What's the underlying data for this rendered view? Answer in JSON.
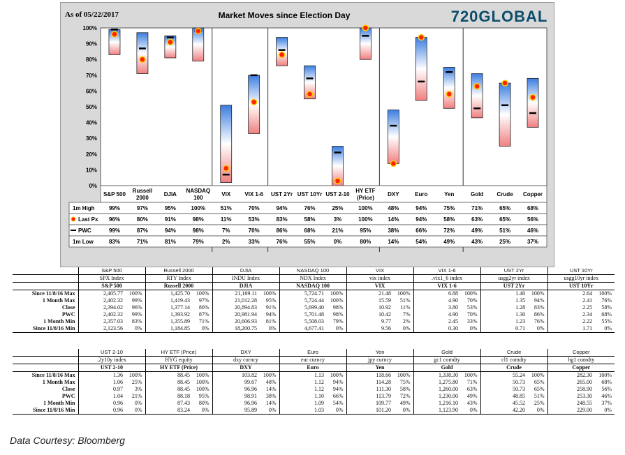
{
  "chart_data": {
    "type": "range-bar",
    "title": "Market Moves since Election Day",
    "as_of": "As of 05/22/2017",
    "brand": "720GLOBAL",
    "ylim": [
      0,
      100
    ],
    "y_ticks": [
      "0%",
      "10%",
      "20%",
      "30%",
      "40%",
      "50%",
      "60%",
      "70%",
      "80%",
      "90%",
      "100%"
    ],
    "categories": [
      "S&P 500",
      "Russell 2000",
      "DJIA",
      "NASDAQ 100",
      "VIX",
      "VIX 1-6",
      "UST 2Yr",
      "UST 10Yr",
      "UST 2-10",
      "HY ETF (Price)",
      "DXY",
      "Euro",
      "Yen",
      "Gold",
      "Crude",
      "Copper"
    ],
    "groups": [
      [
        0,
        1,
        2,
        3
      ],
      [
        4,
        5
      ],
      [
        6,
        7,
        8,
        9
      ],
      [
        10,
        11,
        12
      ],
      [
        13,
        14,
        15
      ]
    ],
    "row_labels": [
      "1m High",
      "Last Px",
      "PWC",
      "1m Low"
    ],
    "high": [
      99,
      97,
      95,
      100,
      51,
      70,
      94,
      76,
      25,
      100,
      48,
      94,
      75,
      71,
      65,
      68
    ],
    "last": [
      96,
      80,
      91,
      98,
      11,
      53,
      83,
      58,
      3,
      100,
      14,
      94,
      58,
      63,
      65,
      56
    ],
    "pwc": [
      99,
      87,
      94,
      98,
      7,
      70,
      86,
      68,
      21,
      95,
      38,
      66,
      72,
      49,
      51,
      46
    ],
    "low": [
      83,
      71,
      81,
      79,
      2,
      33,
      76,
      55,
      0,
      80,
      14,
      54,
      49,
      43,
      25,
      37
    ],
    "colors": {
      "bar_top": "#3b7de0",
      "bar_bottom": "#f08080",
      "marker": "#ff2200",
      "marker_ring": "#ffcc00",
      "pwc": "#000000"
    }
  },
  "table1": {
    "groups": [
      "S&P 500",
      "Russell 2000",
      "DJIA",
      "NASDAQ 100",
      "VIX",
      "VIX 1-6",
      "UST 2Yr",
      "UST 10Yr"
    ],
    "tickers": [
      "SPX Index",
      "RTY Index",
      "INDU Index",
      "NDX Index",
      "vix index",
      ".vix1_6 index",
      "usgg2yr index",
      "usgg10yr index"
    ],
    "names": [
      "S&P 500",
      "Russell 2000",
      "DJIA",
      "NASDAQ 100",
      "VIX",
      "VIX 1-6",
      "UST 2Yr",
      "UST 10Yr"
    ],
    "rows": [
      {
        "label": "Since 11/8/16 Max",
        "cells": [
          [
            "2,405.77",
            "100%"
          ],
          [
            "1,425.70",
            "100%"
          ],
          [
            "21,169.11",
            "100%"
          ],
          [
            "5,724.71",
            "100%"
          ],
          [
            "21.48",
            "100%"
          ],
          [
            "6.88",
            "100%"
          ],
          [
            "1.40",
            "100%"
          ],
          [
            "2.64",
            "100%"
          ]
        ]
      },
      {
        "label": "1 Month Max",
        "cells": [
          [
            "2,402.32",
            "99%"
          ],
          [
            "1,419.43",
            "97%"
          ],
          [
            "21,012.28",
            "95%"
          ],
          [
            "5,724.44",
            "100%"
          ],
          [
            "15.59",
            "51%"
          ],
          [
            "4.90",
            "70%"
          ],
          [
            "1.35",
            "94%"
          ],
          [
            "2.41",
            "76%"
          ]
        ]
      },
      {
        "label": "Close",
        "cells": [
          [
            "2,394.02",
            "96%"
          ],
          [
            "1,377.14",
            "80%"
          ],
          [
            "20,894.83",
            "91%"
          ],
          [
            "5,699.40",
            "98%"
          ],
          [
            "10.92",
            "11%"
          ],
          [
            "3.80",
            "53%"
          ],
          [
            "1.28",
            "83%"
          ],
          [
            "2.25",
            "58%"
          ]
        ]
      },
      {
        "label": "PWC",
        "cells": [
          [
            "2,402.32",
            "99%"
          ],
          [
            "1,393.92",
            "87%"
          ],
          [
            "20,981.94",
            "94%"
          ],
          [
            "5,701.48",
            "98%"
          ],
          [
            "10.42",
            "7%"
          ],
          [
            "4.90",
            "70%"
          ],
          [
            "1.30",
            "86%"
          ],
          [
            "2.34",
            "68%"
          ]
        ]
      },
      {
        "label": "1 Month Min",
        "cells": [
          [
            "2,357.03",
            "83%"
          ],
          [
            "1,355.89",
            "71%"
          ],
          [
            "20,606.93",
            "81%"
          ],
          [
            "5,508.03",
            "79%"
          ],
          [
            "9.77",
            "2%"
          ],
          [
            "2.45",
            "33%"
          ],
          [
            "1.23",
            "76%"
          ],
          [
            "2.22",
            "55%"
          ]
        ]
      },
      {
        "label": "Since 11/8/16 Min",
        "cells": [
          [
            "2,123.56",
            "0%"
          ],
          [
            "1,184.85",
            "0%"
          ],
          [
            "18,200.75",
            "0%"
          ],
          [
            "4,677.41",
            "0%"
          ],
          [
            "9.56",
            "0%"
          ],
          [
            "0.30",
            "0%"
          ],
          [
            "0.71",
            "0%"
          ],
          [
            "1.71",
            "0%"
          ]
        ]
      }
    ]
  },
  "table2": {
    "groups": [
      "UST 2-10",
      "HY ETF (Price)",
      "DXY",
      "Euro",
      "Yen",
      "Gold",
      "Crude",
      "Copper"
    ],
    "tickers": [
      ".2y10y index",
      "HYG equity",
      "dxy curncy",
      "eur curncy",
      "jpy curncy",
      "gc1 comdty",
      "cl1 comdty",
      "hg1 comdty"
    ],
    "names": [
      "UST 2-10",
      "HY ETF (Price)",
      "DXY",
      "Euro",
      "Yen",
      "Gold",
      "Crude",
      "Copper"
    ],
    "rows": [
      {
        "label": "Since 11/8/16 Max",
        "cells": [
          [
            "1.36",
            "100%"
          ],
          [
            "88.45",
            "100%"
          ],
          [
            "103.82",
            "100%"
          ],
          [
            "1.13",
            "100%"
          ],
          [
            "118.66",
            "100%"
          ],
          [
            "1,338.30",
            "100%"
          ],
          [
            "55.24",
            "100%"
          ],
          [
            "282.30",
            "100%"
          ]
        ]
      },
      {
        "label": "1 Month Max",
        "cells": [
          [
            "1.06",
            "25%"
          ],
          [
            "88.45",
            "100%"
          ],
          [
            "99.67",
            "48%"
          ],
          [
            "1.12",
            "94%"
          ],
          [
            "114.28",
            "75%"
          ],
          [
            "1,275.80",
            "71%"
          ],
          [
            "50.73",
            "65%"
          ],
          [
            "265.00",
            "68%"
          ]
        ]
      },
      {
        "label": "Close",
        "cells": [
          [
            "0.97",
            "3%"
          ],
          [
            "88.45",
            "100%"
          ],
          [
            "96.96",
            "14%"
          ],
          [
            "1.12",
            "94%"
          ],
          [
            "111.30",
            "58%"
          ],
          [
            "1,260.00",
            "63%"
          ],
          [
            "50.73",
            "65%"
          ],
          [
            "258.90",
            "56%"
          ]
        ]
      },
      {
        "label": "PWC",
        "cells": [
          [
            "1.04",
            "21%"
          ],
          [
            "88.18",
            "95%"
          ],
          [
            "98.91",
            "38%"
          ],
          [
            "1.10",
            "66%"
          ],
          [
            "113.79",
            "72%"
          ],
          [
            "1,230.00",
            "49%"
          ],
          [
            "48.85",
            "51%"
          ],
          [
            "253.30",
            "46%"
          ]
        ]
      },
      {
        "label": "1 Month Min",
        "cells": [
          [
            "0.96",
            "0%"
          ],
          [
            "87.43",
            "80%"
          ],
          [
            "96.96",
            "14%"
          ],
          [
            "1.09",
            "54%"
          ],
          [
            "109.77",
            "49%"
          ],
          [
            "1,216.10",
            "43%"
          ],
          [
            "45.52",
            "25%"
          ],
          [
            "248.55",
            "37%"
          ]
        ]
      },
      {
        "label": "Since 11/8/16 Min",
        "cells": [
          [
            "0.96",
            "0%"
          ],
          [
            "83.24",
            "0%"
          ],
          [
            "95.89",
            "0%"
          ],
          [
            "1.03",
            "0%"
          ],
          [
            "101.20",
            "0%"
          ],
          [
            "1,123.90",
            "0%"
          ],
          [
            "42.20",
            "0%"
          ],
          [
            "229.00",
            "0%"
          ]
        ]
      }
    ]
  },
  "footer": "Data Courtesy: Bloomberg"
}
